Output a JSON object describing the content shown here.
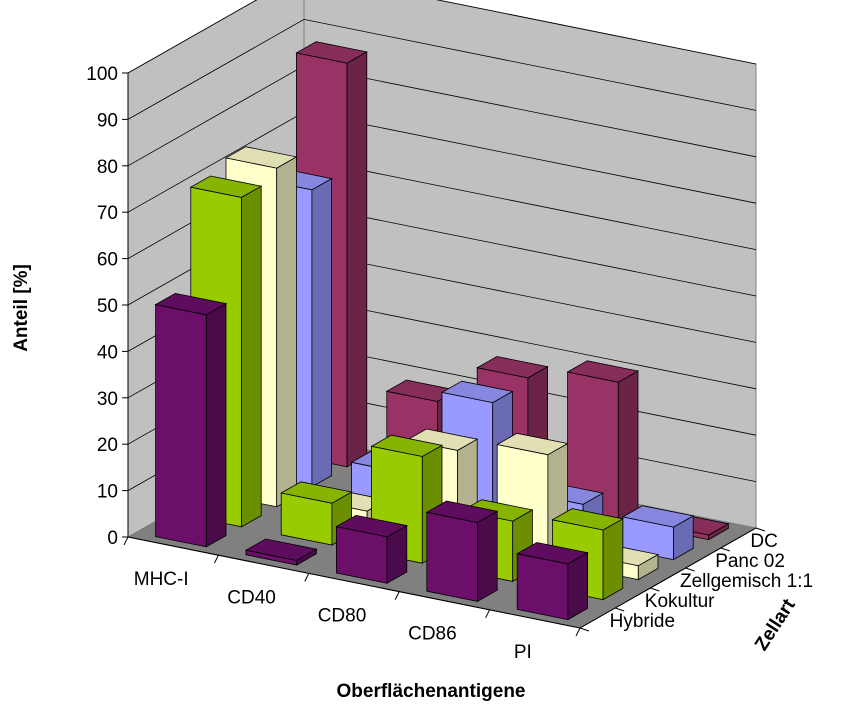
{
  "chart_data": {
    "type": "bar",
    "categories": [
      "MHC-I",
      "CD40",
      "CD80",
      "CD86",
      "PI"
    ],
    "series": [
      {
        "name": "Hybride",
        "values": [
          50,
          1,
          10,
          17,
          12
        ],
        "color": "#6b0f6b"
      },
      {
        "name": "Kokultur",
        "values": [
          71,
          9,
          23,
          13,
          15
        ],
        "color": "#99cc00"
      },
      {
        "name": "Zellgemisch  1:1",
        "values": [
          73,
          3,
          20,
          23,
          3
        ],
        "color": "#ffffcc"
      },
      {
        "name": "Panc 02",
        "values": [
          64,
          7,
          26,
          8,
          7
        ],
        "color": "#9999ff"
      },
      {
        "name": "DC",
        "values": [
          87,
          18,
          27,
          30,
          1
        ],
        "color": "#993366"
      }
    ],
    "ylabel": "Anteil [%]",
    "xlabel": "Oberflächenantigene",
    "zlabel": "Zellart",
    "yticks": [
      "0",
      "10",
      "20",
      "30",
      "40",
      "50",
      "60",
      "70",
      "80",
      "90",
      "100"
    ],
    "ylim": [
      0,
      100
    ],
    "grid": true,
    "wall_color": "#c0c0c0"
  }
}
